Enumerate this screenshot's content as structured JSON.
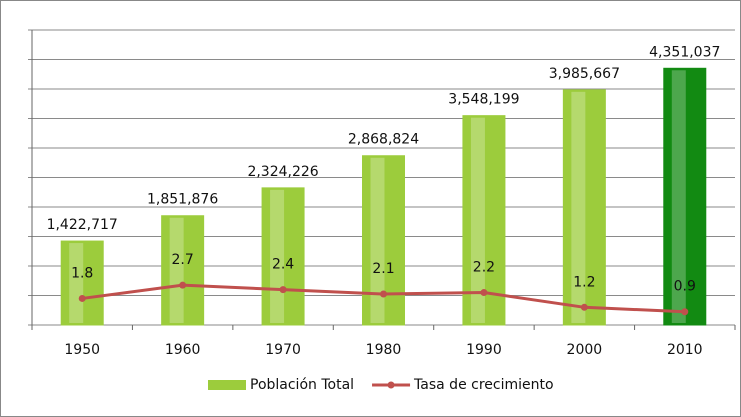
{
  "chart_data": {
    "type": "bar",
    "categories": [
      "1950",
      "1960",
      "1970",
      "1980",
      "1990",
      "2000",
      "2010"
    ],
    "series": [
      {
        "name": "Población Total",
        "type": "bar",
        "color": "#9ccc3c",
        "colors": [
          "#9ccc3c",
          "#9ccc3c",
          "#9ccc3c",
          "#9ccc3c",
          "#9ccc3c",
          "#9ccc3c",
          "#128a12"
        ],
        "values": [
          1422717,
          1851876,
          2324226,
          2868824,
          3548199,
          3985667,
          4351037
        ],
        "value_labels": [
          "1,422,717",
          "1,851,876",
          "2,324,226",
          "2,868,824",
          "3,548,199",
          "3,985,667",
          "4,351,037"
        ]
      },
      {
        "name": "Tasa de crecimiento",
        "type": "line",
        "axis": "y2",
        "color": "#c0504d",
        "values": [
          1.8,
          2.7,
          2.4,
          2.1,
          2.2,
          1.2,
          0.9
        ]
      }
    ],
    "ylim": [
      0,
      5000000
    ],
    "yticks": [
      0,
      500000,
      1000000,
      1500000,
      2000000,
      2500000,
      3000000,
      3500000,
      4000000,
      4500000,
      5000000
    ],
    "y2lim": [
      0,
      20
    ],
    "grid": true,
    "legend": "bottom"
  }
}
